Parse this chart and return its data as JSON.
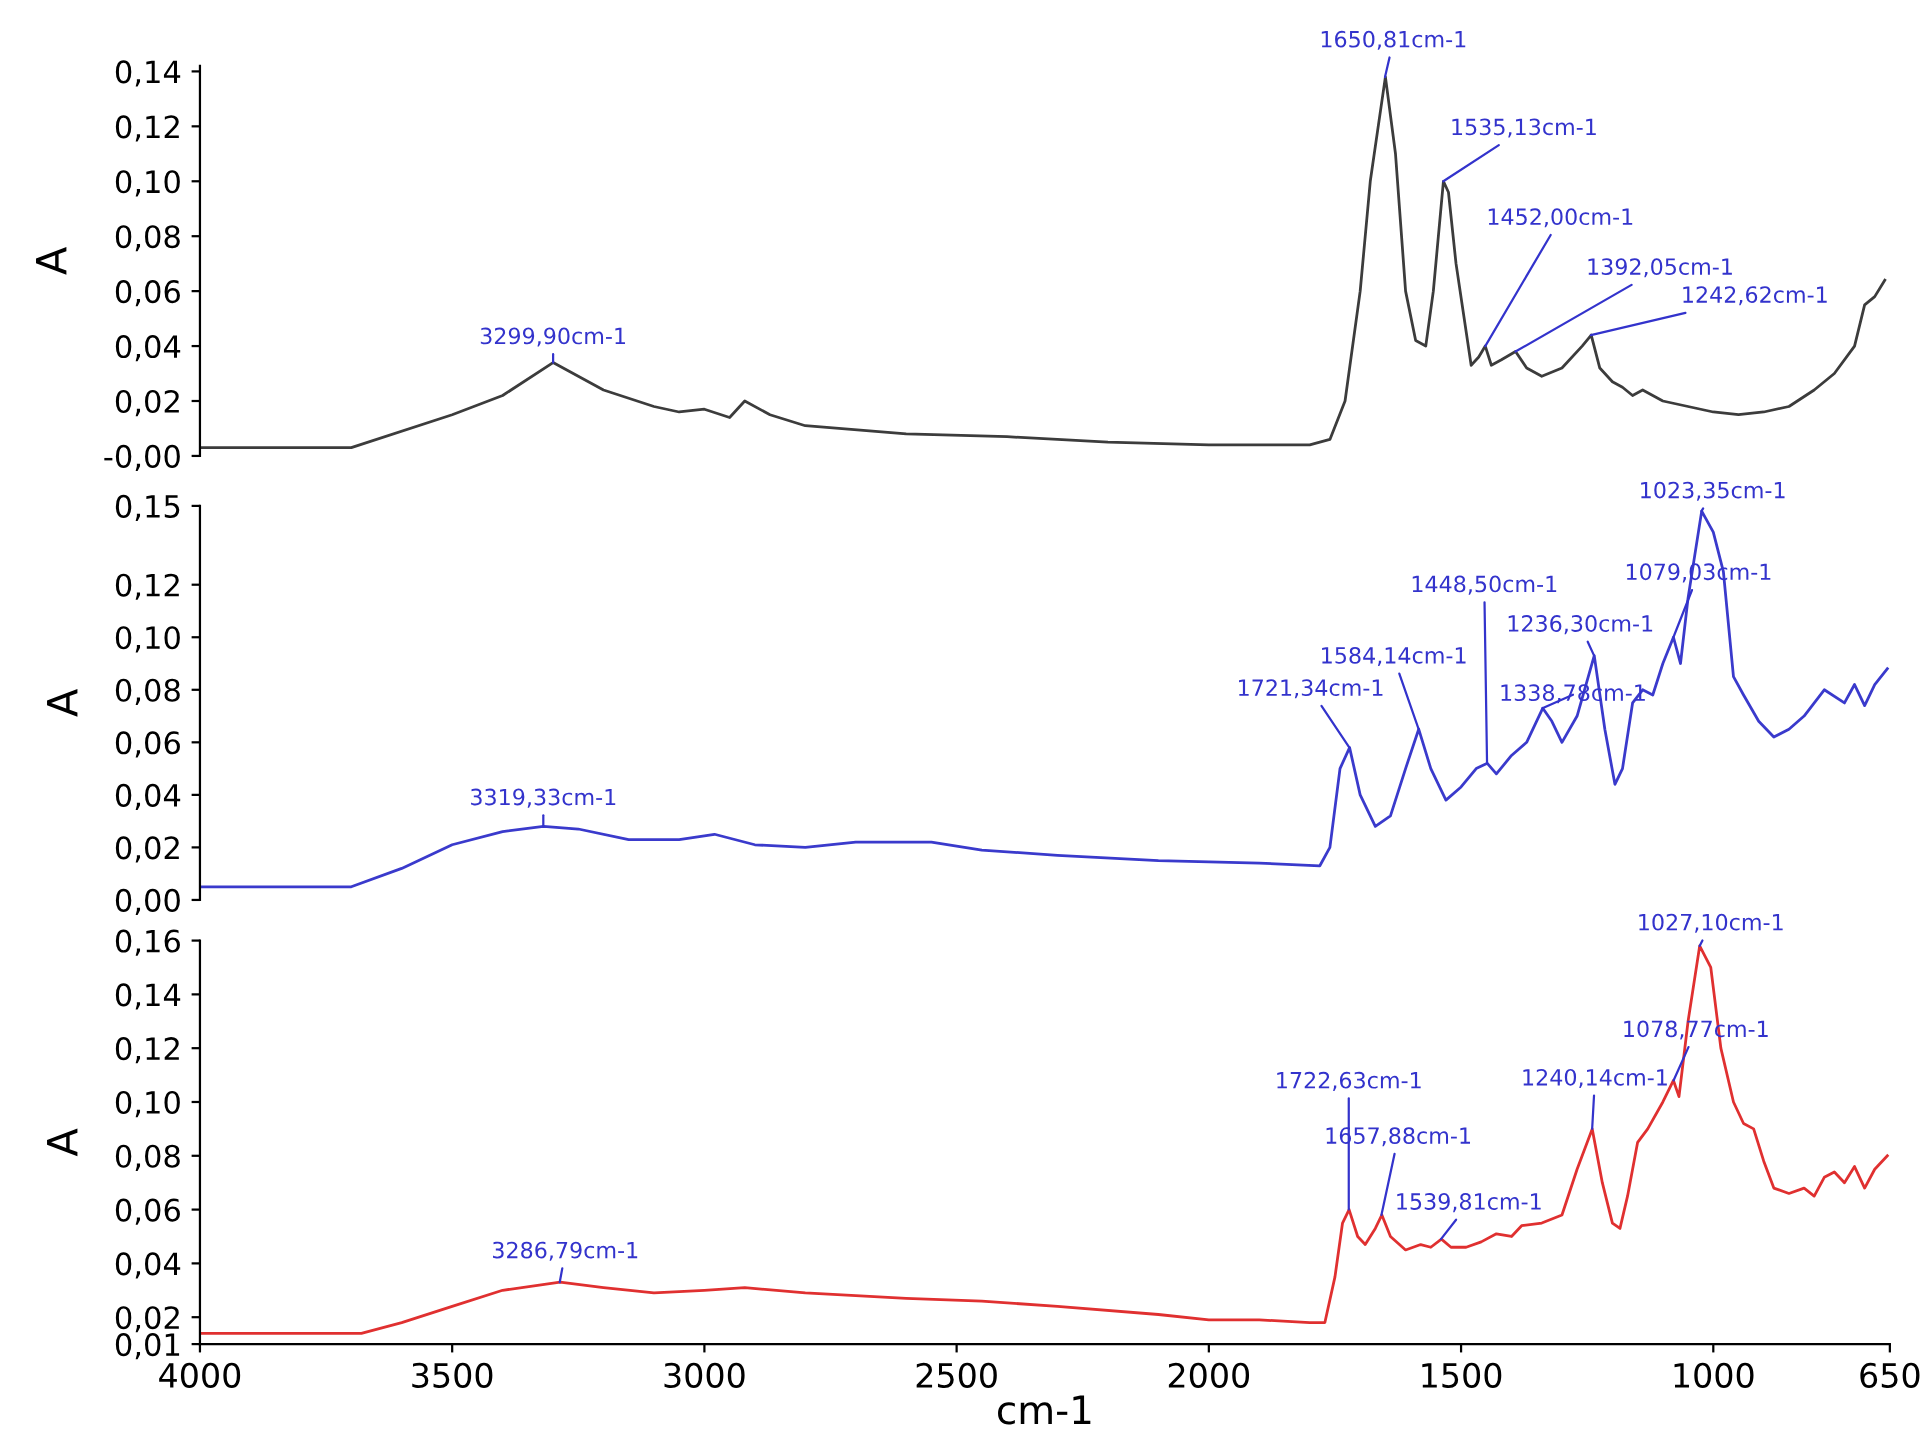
{
  "chart_data": [
    {
      "type": "line",
      "ylabel": "A",
      "xlim": [
        4000,
        650
      ],
      "xticks": [
        4000,
        3500,
        3000,
        2500,
        2000,
        1500,
        1000,
        650
      ],
      "ylim": [
        0,
        0.142
      ],
      "yticks": [
        {
          "value": 0,
          "label": "-0,00"
        },
        {
          "value": 0.02,
          "label": "0,02"
        },
        {
          "value": 0.04,
          "label": "0,04"
        },
        {
          "value": 0.06,
          "label": "0,06"
        },
        {
          "value": 0.08,
          "label": "0,08"
        },
        {
          "value": 0.1,
          "label": "0,10"
        },
        {
          "value": 0.12,
          "label": "0,12"
        },
        {
          "value": 0.14,
          "label": "0,14"
        }
      ],
      "tick_labels": "y",
      "series": [
        {
          "color": "#3c3c3c",
          "x": [
            4000,
            3700,
            3500,
            3400,
            3300,
            3200,
            3100,
            3050,
            3000,
            2950,
            2920,
            2870,
            2800,
            2600,
            2400,
            2200,
            2000,
            1800,
            1760,
            1730,
            1700,
            1680,
            1650,
            1630,
            1610,
            1590,
            1570,
            1555,
            1535,
            1525,
            1510,
            1480,
            1465,
            1452,
            1440,
            1420,
            1392,
            1370,
            1340,
            1300,
            1260,
            1242,
            1225,
            1200,
            1180,
            1160,
            1140,
            1100,
            1050,
            1000,
            950,
            900,
            850,
            800,
            760,
            720,
            700,
            680,
            660
          ],
          "values": [
            0.003,
            0.003,
            0.015,
            0.022,
            0.034,
            0.024,
            0.018,
            0.016,
            0.017,
            0.014,
            0.02,
            0.015,
            0.011,
            0.008,
            0.007,
            0.005,
            0.004,
            0.004,
            0.006,
            0.02,
            0.06,
            0.1,
            0.138,
            0.11,
            0.06,
            0.042,
            0.04,
            0.06,
            0.1,
            0.096,
            0.07,
            0.033,
            0.036,
            0.04,
            0.033,
            0.035,
            0.038,
            0.032,
            0.029,
            0.032,
            0.04,
            0.044,
            0.032,
            0.027,
            0.025,
            0.022,
            0.024,
            0.02,
            0.018,
            0.016,
            0.015,
            0.016,
            0.018,
            0.024,
            0.03,
            0.04,
            0.055,
            0.058,
            0.064
          ]
        }
      ],
      "annotations": [
        {
          "text": "3299,90cm-1",
          "x": 3299.9,
          "y": 0.034
        },
        {
          "text": "1650,81cm-1",
          "x": 1650.81,
          "y": 0.138
        },
        {
          "text": "1535,13cm-1",
          "x": 1535.13,
          "y": 0.1
        },
        {
          "text": "1452,00cm-1",
          "x": 1452.0,
          "y": 0.04
        },
        {
          "text": "1392,05cm-1",
          "x": 1392.05,
          "y": 0.038
        },
        {
          "text": "1242,62cm-1",
          "x": 1242.62,
          "y": 0.044
        }
      ]
    },
    {
      "type": "line",
      "ylabel": "A",
      "xlim": [
        4000,
        650
      ],
      "xticks": [
        4000,
        3500,
        3000,
        2500,
        2000,
        1500,
        1000,
        650
      ],
      "ylim": [
        0,
        0.15
      ],
      "yticks": [
        {
          "value": 0,
          "label": "0,00"
        },
        {
          "value": 0.02,
          "label": "0,02"
        },
        {
          "value": 0.04,
          "label": "0,04"
        },
        {
          "value": 0.06,
          "label": "0,06"
        },
        {
          "value": 0.08,
          "label": "0,08"
        },
        {
          "value": 0.1,
          "label": "0,10"
        },
        {
          "value": 0.12,
          "label": "0,12"
        },
        {
          "value": 0.15,
          "label": "0,15"
        }
      ],
      "tick_labels": "y",
      "series": [
        {
          "color": "#3a3acc",
          "x": [
            4000,
            3700,
            3600,
            3500,
            3400,
            3319,
            3250,
            3150,
            3050,
            2980,
            2900,
            2800,
            2700,
            2550,
            2450,
            2300,
            2100,
            1900,
            1780,
            1760,
            1740,
            1721,
            1700,
            1670,
            1640,
            1610,
            1584,
            1560,
            1530,
            1500,
            1470,
            1448,
            1430,
            1400,
            1370,
            1338,
            1320,
            1300,
            1270,
            1236,
            1215,
            1195,
            1180,
            1160,
            1140,
            1120,
            1100,
            1079,
            1065,
            1050,
            1023,
            1000,
            980,
            960,
            940,
            910,
            880,
            850,
            820,
            780,
            740,
            720,
            700,
            680,
            655
          ],
          "values": [
            0.005,
            0.005,
            0.012,
            0.021,
            0.026,
            0.028,
            0.027,
            0.023,
            0.023,
            0.025,
            0.021,
            0.02,
            0.022,
            0.022,
            0.019,
            0.017,
            0.015,
            0.014,
            0.013,
            0.02,
            0.05,
            0.058,
            0.04,
            0.028,
            0.032,
            0.05,
            0.065,
            0.05,
            0.038,
            0.043,
            0.05,
            0.052,
            0.048,
            0.055,
            0.06,
            0.073,
            0.068,
            0.06,
            0.07,
            0.093,
            0.065,
            0.044,
            0.05,
            0.075,
            0.08,
            0.078,
            0.09,
            0.1,
            0.09,
            0.115,
            0.148,
            0.14,
            0.125,
            0.085,
            0.078,
            0.068,
            0.062,
            0.065,
            0.07,
            0.08,
            0.075,
            0.082,
            0.074,
            0.082,
            0.088
          ]
        }
      ],
      "annotations": [
        {
          "text": "3319,33cm-1",
          "x": 3319.33,
          "y": 0.028
        },
        {
          "text": "1721,34cm-1",
          "x": 1721.34,
          "y": 0.058
        },
        {
          "text": "1584,14cm-1",
          "x": 1584.14,
          "y": 0.065
        },
        {
          "text": "1448,50cm-1",
          "x": 1448.5,
          "y": 0.052
        },
        {
          "text": "1338,78cm-1",
          "x": 1338.78,
          "y": 0.073
        },
        {
          "text": "1236,30cm-1",
          "x": 1236.3,
          "y": 0.093
        },
        {
          "text": "1079,03cm-1",
          "x": 1079.03,
          "y": 0.1
        },
        {
          "text": "1023,35cm-1",
          "x": 1023.35,
          "y": 0.148
        }
      ]
    },
    {
      "type": "line",
      "ylabel": "A",
      "xlabel": "cm-1",
      "xlim": [
        4000,
        650
      ],
      "xticks": [
        4000,
        3500,
        3000,
        2500,
        2000,
        1500,
        1000,
        650
      ],
      "ylim": [
        0.01,
        0.16
      ],
      "yticks": [
        {
          "value": 0.01,
          "label": "0,01"
        },
        {
          "value": 0.02,
          "label": "0,02"
        },
        {
          "value": 0.04,
          "label": "0,04"
        },
        {
          "value": 0.06,
          "label": "0,06"
        },
        {
          "value": 0.08,
          "label": "0,08"
        },
        {
          "value": 0.1,
          "label": "0,10"
        },
        {
          "value": 0.12,
          "label": "0,12"
        },
        {
          "value": 0.14,
          "label": "0,14"
        },
        {
          "value": 0.16,
          "label": "0,16"
        }
      ],
      "series": [
        {
          "color": "#e03030",
          "x": [
            4000,
            3680,
            3600,
            3500,
            3400,
            3286,
            3200,
            3100,
            3000,
            2920,
            2800,
            2600,
            2450,
            2300,
            2100,
            2000,
            1900,
            1800,
            1770,
            1750,
            1735,
            1722,
            1705,
            1690,
            1670,
            1657,
            1640,
            1610,
            1580,
            1560,
            1539,
            1520,
            1490,
            1460,
            1430,
            1400,
            1380,
            1340,
            1300,
            1270,
            1240,
            1220,
            1200,
            1185,
            1170,
            1150,
            1130,
            1100,
            1079,
            1068,
            1050,
            1027,
            1005,
            985,
            960,
            940,
            920,
            900,
            880,
            850,
            820,
            800,
            780,
            760,
            740,
            720,
            700,
            680,
            655
          ],
          "values": [
            0.014,
            0.014,
            0.018,
            0.024,
            0.03,
            0.033,
            0.031,
            0.029,
            0.03,
            0.031,
            0.029,
            0.027,
            0.026,
            0.024,
            0.021,
            0.019,
            0.019,
            0.018,
            0.018,
            0.035,
            0.055,
            0.06,
            0.05,
            0.047,
            0.053,
            0.058,
            0.05,
            0.045,
            0.047,
            0.046,
            0.049,
            0.046,
            0.046,
            0.048,
            0.051,
            0.05,
            0.054,
            0.055,
            0.058,
            0.075,
            0.09,
            0.07,
            0.055,
            0.053,
            0.065,
            0.085,
            0.09,
            0.1,
            0.108,
            0.102,
            0.13,
            0.158,
            0.15,
            0.12,
            0.1,
            0.092,
            0.09,
            0.078,
            0.068,
            0.066,
            0.068,
            0.065,
            0.072,
            0.074,
            0.07,
            0.076,
            0.068,
            0.075,
            0.08
          ]
        }
      ],
      "annotations": [
        {
          "text": "3286,79cm-1",
          "x": 3286.79,
          "y": 0.033
        },
        {
          "text": "1722,63cm-1",
          "x": 1722.63,
          "y": 0.06
        },
        {
          "text": "1657,88cm-1",
          "x": 1657.88,
          "y": 0.058
        },
        {
          "text": "1539,81cm-1",
          "x": 1539.81,
          "y": 0.049
        },
        {
          "text": "1240,14cm-1",
          "x": 1240.14,
          "y": 0.09
        },
        {
          "text": "1078,77cm-1",
          "x": 1078.77,
          "y": 0.108
        },
        {
          "text": "1027,10cm-1",
          "x": 1027.1,
          "y": 0.158
        }
      ]
    }
  ]
}
